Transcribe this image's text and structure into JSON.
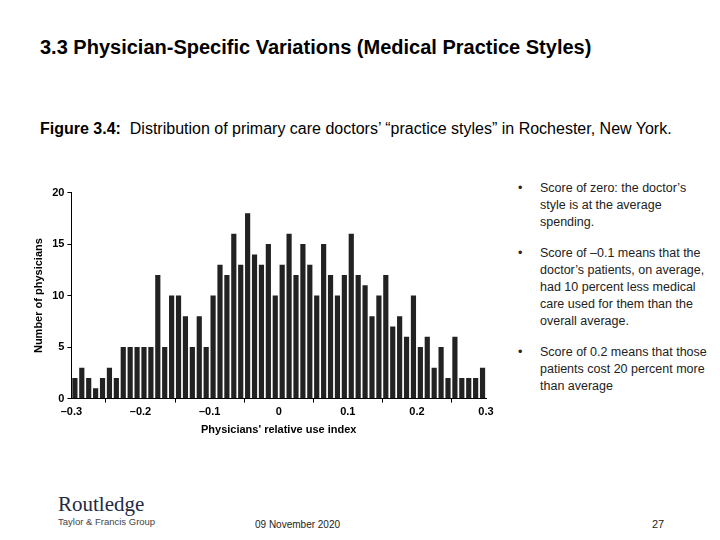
{
  "header": {
    "title": "3.3 Physician-Specific Variations (Medical Practice Styles)"
  },
  "caption": {
    "label": "Figure 3.4:",
    "text": "Distribution of primary care doctors’ “practice styles” in Rochester, New York."
  },
  "bullets": [
    "Score of zero:  the doctor’s style is at the average spending.",
    "Score of –0.1 means that the doctor’s patients, on average, had 10 percent less medical care used for them than the overall average.",
    "Score of 0.2 means that those patients cost 20 percent more than average"
  ],
  "footer": {
    "publisher": "Routledge",
    "publisher_group": "Taylor & Francis Group",
    "date": "09 November 2020",
    "page": "27"
  },
  "chart_data": {
    "type": "histogram",
    "x_label": "Physicians' relative use index",
    "y_label": "Number of physicians",
    "bins": [
      -0.3,
      -0.29,
      -0.28,
      -0.27,
      -0.26,
      -0.25,
      -0.24,
      -0.23,
      -0.22,
      -0.21,
      -0.2,
      -0.19,
      -0.18,
      -0.17,
      -0.16,
      -0.15,
      -0.14,
      -0.13,
      -0.12,
      -0.11,
      -0.1,
      -0.09,
      -0.08,
      -0.07,
      -0.06,
      -0.05,
      -0.04,
      -0.03,
      -0.02,
      -0.01,
      0,
      0.01,
      0.02,
      0.03,
      0.04,
      0.05,
      0.06,
      0.07,
      0.08,
      0.09,
      0.1,
      0.11,
      0.12,
      0.13,
      0.14,
      0.15,
      0.16,
      0.17,
      0.18,
      0.19,
      0.2,
      0.21,
      0.22,
      0.23,
      0.24,
      0.25,
      0.26,
      0.27,
      0.28,
      0.29,
      0.3
    ],
    "values": [
      2,
      3,
      2,
      1,
      2,
      3,
      2,
      5,
      5,
      5,
      5,
      5,
      12,
      5,
      10,
      10,
      8,
      5,
      8,
      5,
      10,
      13,
      12,
      16,
      13,
      18,
      14,
      13,
      15,
      10,
      13,
      16,
      12,
      15,
      13,
      10,
      15,
      12,
      10,
      12,
      16,
      12,
      11,
      8,
      10,
      12,
      7,
      8,
      6,
      10,
      5,
      6,
      3,
      5,
      2,
      6,
      2,
      2,
      2,
      3
    ],
    "color": "#222222",
    "xlim": [
      -0.3,
      0.3
    ],
    "xticks": [
      {
        "value": -0.3,
        "label": "–0.3"
      },
      {
        "value": -0.2,
        "label": "–0.2"
      },
      {
        "value": -0.1,
        "label": "–0.1"
      },
      0,
      0.1,
      0.2,
      0.3
    ],
    "ylim": [
      0,
      20
    ],
    "yticks": [
      0,
      5,
      10,
      15,
      20
    ],
    "grid": false
  }
}
